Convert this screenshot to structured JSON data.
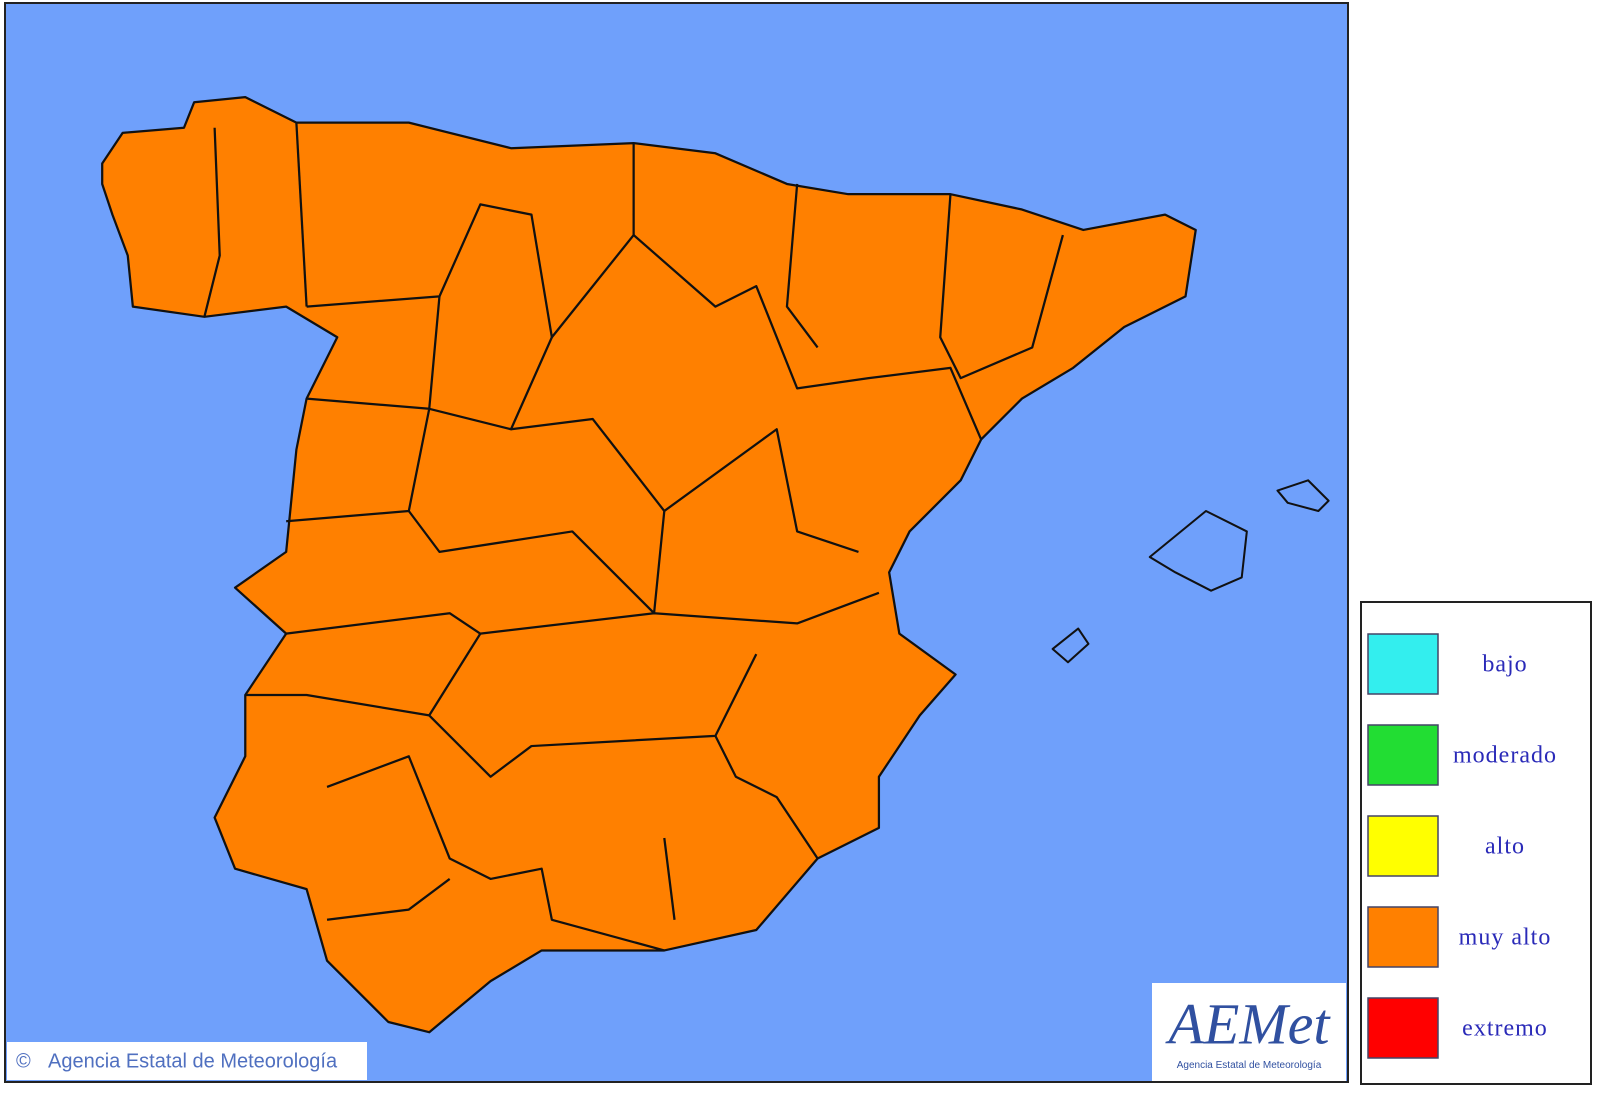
{
  "legend": [
    {
      "label": "bajo",
      "color": "#33eeee"
    },
    {
      "label": "moderado",
      "color": "#22dd33"
    },
    {
      "label": "alto",
      "color": "#ffff00"
    },
    {
      "label": "muy alto",
      "color": "#ff8000"
    },
    {
      "label": "extremo",
      "color": "#ff0000"
    }
  ],
  "sea_color": "#6fa0fb",
  "copyright": "Agencia Estatal de Meteorología",
  "logo": {
    "name": "AEMet",
    "subtitle": "Agencia Estatal de Meteorología"
  }
}
